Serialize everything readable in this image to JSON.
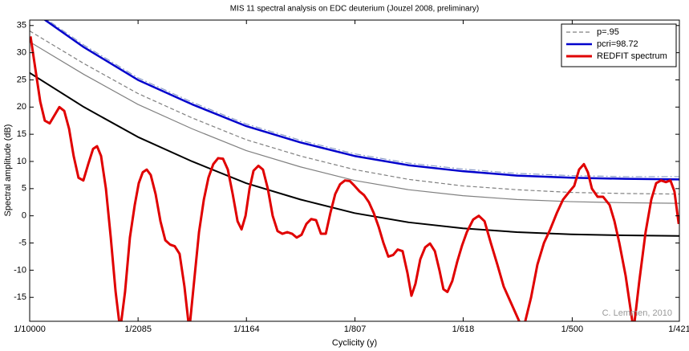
{
  "chart_data": {
    "type": "line",
    "title": "MIS 11 spectral analysis on EDC deuterium (Jouzel 2008, preliminary)",
    "xlabel": "Cyclicity (y)",
    "ylabel": "Spectral amplitude (dB)",
    "annotation": "C. Lemmen, 2010",
    "xlim": [
      0.1,
      2.3753
    ],
    "ylim": [
      -19.4,
      36
    ],
    "xticks": [
      {
        "value": 0.1,
        "label": "1/10000"
      },
      {
        "value": 0.4796,
        "label": "1/2085"
      },
      {
        "value": 0.8591,
        "label": "1/1164"
      },
      {
        "value": 1.2392,
        "label": "1/807"
      },
      {
        "value": 1.6181,
        "label": "1/618"
      },
      {
        "value": 2.0,
        "label": "1/500"
      },
      {
        "value": 2.3753,
        "label": "1/421"
      }
    ],
    "yticks": [
      -15,
      -10,
      -5,
      0,
      5,
      10,
      15,
      20,
      25,
      30,
      35
    ],
    "grid": false,
    "legend": "northeast",
    "series": [
      {
        "color": "#000000",
        "style": "solid",
        "width": 2,
        "x": [
          0.1,
          0.29,
          0.479,
          0.669,
          0.858,
          1.048,
          1.238,
          1.427,
          1.617,
          1.806,
          1.996,
          2.186,
          2.375
        ],
        "values": [
          26.3,
          20,
          14.5,
          10,
          6,
          3,
          0.5,
          -1.2,
          -2.3,
          -3,
          -3.4,
          -3.6,
          -3.7
        ]
      },
      {
        "color": "#808080",
        "style": "solid",
        "width": 1.2,
        "x": [
          0.1,
          0.29,
          0.479,
          0.669,
          0.858,
          1.048,
          1.238,
          1.427,
          1.617,
          1.806,
          1.996,
          2.186,
          2.375
        ],
        "values": [
          32,
          26,
          20.5,
          16,
          12,
          9,
          6.5,
          4.8,
          3.7,
          3,
          2.6,
          2.4,
          2.3
        ]
      },
      {
        "name": "p=.95",
        "color": "#808080",
        "style": "dashed",
        "width": 1.2,
        "x": [
          0.1,
          0.29,
          0.479,
          0.669,
          0.858,
          1.048,
          1.238,
          1.427,
          1.617,
          1.806,
          1.996,
          2.186,
          2.375
        ],
        "values": [
          34,
          28,
          22.5,
          18,
          14,
          11,
          8.5,
          6.7,
          5.5,
          4.8,
          4.3,
          4.1,
          4.0
        ]
      },
      {
        "color": "#8a9cc8",
        "style": "dashdot",
        "width": 1.2,
        "x": [
          0.1,
          0.29,
          0.479,
          0.669,
          0.858,
          1.048,
          1.238,
          1.427,
          1.617,
          1.806,
          1.996,
          2.186,
          2.375
        ],
        "values": [
          38.3,
          31.4,
          25.4,
          20.9,
          16.9,
          13.9,
          11.4,
          9.7,
          8.6,
          7.8,
          7.4,
          7.2,
          7.2
        ]
      },
      {
        "name": "pcri=98.72",
        "color": "#0000cc",
        "style": "solid",
        "width": 2.5,
        "x": [
          0.1,
          0.29,
          0.479,
          0.669,
          0.858,
          1.048,
          1.238,
          1.427,
          1.617,
          1.806,
          1.996,
          2.186,
          2.375
        ],
        "values": [
          38,
          31,
          25,
          20.5,
          16.5,
          13.5,
          11,
          9.3,
          8.2,
          7.4,
          7,
          6.8,
          6.7
        ]
      },
      {
        "name": "REDFIT spectrum",
        "color": "#e00000",
        "style": "solid",
        "width": 3,
        "x": [
          0.103,
          0.12,
          0.137,
          0.153,
          0.17,
          0.187,
          0.204,
          0.221,
          0.238,
          0.254,
          0.271,
          0.288,
          0.305,
          0.322,
          0.336,
          0.35,
          0.367,
          0.384,
          0.401,
          0.417,
          0.434,
          0.451,
          0.468,
          0.482,
          0.496,
          0.51,
          0.524,
          0.541,
          0.558,
          0.575,
          0.592,
          0.608,
          0.625,
          0.642,
          0.659,
          0.676,
          0.693,
          0.71,
          0.726,
          0.743,
          0.76,
          0.777,
          0.794,
          0.811,
          0.828,
          0.842,
          0.856,
          0.87,
          0.884,
          0.901,
          0.917,
          0.934,
          0.951,
          0.968,
          0.985,
          1.002,
          1.019,
          1.035,
          1.052,
          1.069,
          1.086,
          1.103,
          1.12,
          1.137,
          1.153,
          1.17,
          1.187,
          1.204,
          1.221,
          1.238,
          1.255,
          1.271,
          1.288,
          1.305,
          1.322,
          1.339,
          1.356,
          1.373,
          1.389,
          1.406,
          1.423,
          1.437,
          1.451,
          1.468,
          1.485,
          1.502,
          1.519,
          1.535,
          1.549,
          1.563,
          1.58,
          1.597,
          1.614,
          1.631,
          1.653,
          1.673,
          1.693,
          1.715,
          1.738,
          1.76,
          1.794,
          1.828,
          1.856,
          1.878,
          1.901,
          1.923,
          1.946,
          1.968,
          1.991,
          2.007,
          2.024,
          2.041,
          2.055,
          2.069,
          2.089,
          2.108,
          2.131,
          2.148,
          2.165,
          2.187,
          2.215,
          2.235,
          2.257,
          2.277,
          2.294,
          2.311,
          2.328,
          2.344,
          2.358,
          2.373
        ],
        "values": [
          33,
          27,
          21,
          17.5,
          17,
          18.5,
          20,
          19.3,
          16,
          11,
          7,
          6.5,
          9.5,
          12.3,
          12.8,
          11,
          5,
          -4,
          -14,
          -21,
          -14,
          -4,
          2,
          6,
          8,
          8.5,
          7.5,
          4,
          -1,
          -4.5,
          -5.3,
          -5.6,
          -7,
          -13,
          -21,
          -12,
          -3,
          3,
          7,
          9.5,
          10.6,
          10.5,
          8.5,
          4,
          -1,
          -2.5,
          0,
          5,
          8.3,
          9.2,
          8.5,
          5,
          0,
          -2.8,
          -3.3,
          -3,
          -3.3,
          -4,
          -3.5,
          -1.5,
          -0.6,
          -0.8,
          -3.3,
          -3.3,
          0.5,
          4,
          5.8,
          6.5,
          6.4,
          5.5,
          4.5,
          3.8,
          2.5,
          0.5,
          -2,
          -5,
          -7.5,
          -7.2,
          -6.2,
          -6.5,
          -10.5,
          -14.7,
          -12.5,
          -8,
          -5.8,
          -5.1,
          -6.5,
          -10,
          -13.5,
          -14,
          -12,
          -8.5,
          -5.5,
          -3,
          -0.7,
          0,
          -1,
          -5,
          -9,
          -13,
          -17,
          -21,
          -15,
          -9,
          -5,
          -2.5,
          0.5,
          3,
          4.5,
          5.5,
          8.5,
          9.5,
          8,
          5,
          3.5,
          3.5,
          2,
          -1,
          -5,
          -11,
          -21,
          -12,
          -3,
          3,
          6,
          6.5,
          6.2,
          6.5,
          4.5,
          -1.5
        ]
      }
    ]
  }
}
